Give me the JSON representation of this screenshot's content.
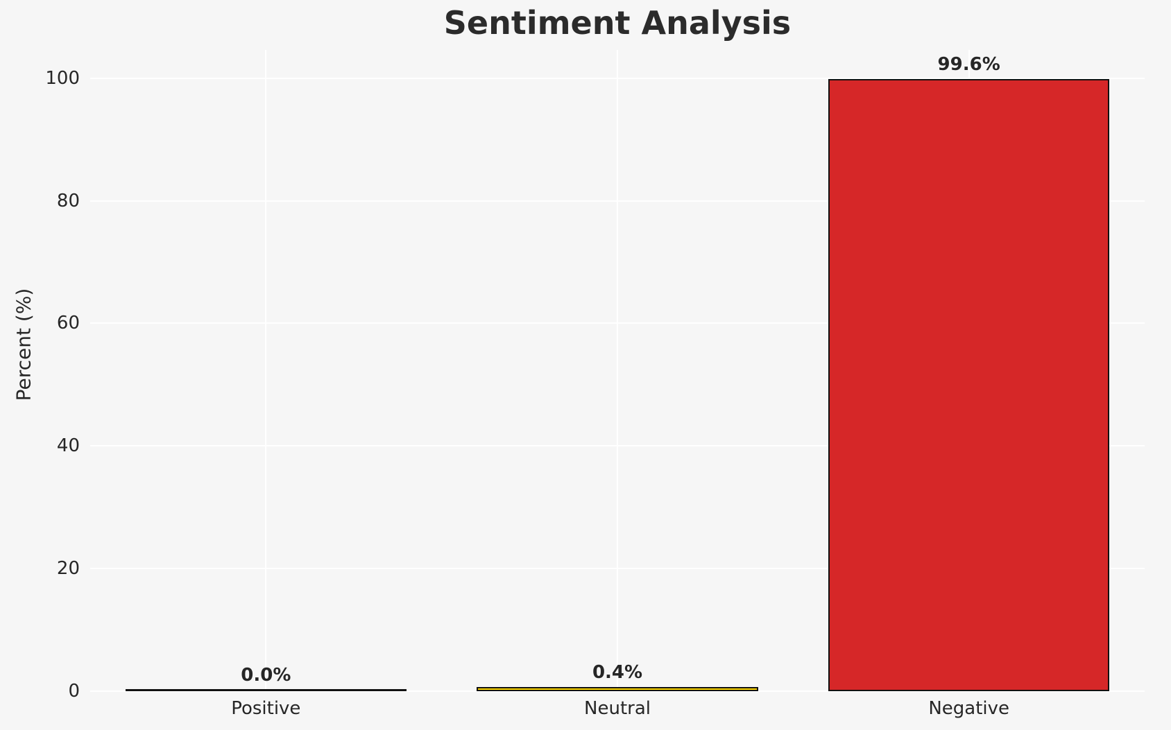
{
  "figure": {
    "background_color": "#f6f6f6",
    "gridline_color": "#ffffff",
    "text_color": "#262626"
  },
  "chart_data": {
    "type": "bar",
    "title": "Sentiment Analysis",
    "xlabel": "",
    "ylabel": "Percent (%)",
    "categories": [
      "Positive",
      "Neutral",
      "Negative"
    ],
    "values": [
      0.0,
      0.4,
      99.6
    ],
    "bar_labels": [
      "0.0%",
      "0.4%",
      "99.6%"
    ],
    "bar_colors": [
      "none",
      "#ffd700",
      "#d62728"
    ],
    "bar_edge_color": "#111111",
    "yticks": [
      0,
      20,
      40,
      60,
      80,
      100
    ],
    "ylim": [
      0,
      104.6
    ],
    "grid": true,
    "grid_style": "white horizontal and vertical gridlines on light gray axes",
    "legend": false
  }
}
